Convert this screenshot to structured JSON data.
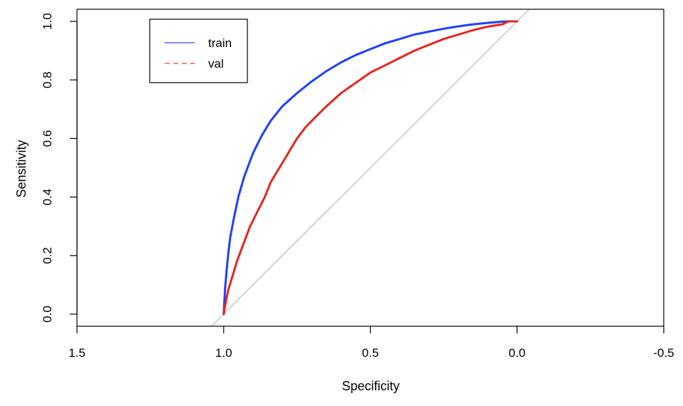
{
  "chart_data": {
    "type": "line",
    "title": "",
    "xlabel": "Specificity",
    "ylabel": "Sensitivity",
    "x_reversed": true,
    "xlim": [
      1.5,
      -0.5
    ],
    "ylim": [
      0.0,
      1.0
    ],
    "x_ticks": [
      1.5,
      1.0,
      0.5,
      0.0,
      -0.5
    ],
    "x_tick_labels": [
      "1.5",
      "1.0",
      "0.5",
      "0.0",
      "-0.5"
    ],
    "y_ticks": [
      0.0,
      0.2,
      0.4,
      0.6,
      0.8,
      1.0
    ],
    "y_tick_labels": [
      "0.0",
      "0.2",
      "0.4",
      "0.6",
      "0.8",
      "1.0"
    ],
    "grid": false,
    "legend_position": "top-left",
    "reference_line": {
      "from": [
        1.04,
        -0.04
      ],
      "to": [
        -0.04,
        1.04
      ],
      "color": "#bebebe"
    },
    "series": [
      {
        "name": "train",
        "color": "#1f3fff",
        "legend_color": "#6b7bff",
        "legend_style": "solid",
        "x": [
          1.0,
          0.998,
          0.995,
          0.99,
          0.985,
          0.978,
          0.965,
          0.95,
          0.93,
          0.9,
          0.87,
          0.84,
          0.8,
          0.75,
          0.7,
          0.65,
          0.6,
          0.55,
          0.5,
          0.45,
          0.4,
          0.35,
          0.3,
          0.25,
          0.2,
          0.15,
          0.1,
          0.05,
          0.03,
          0.0
        ],
        "y": [
          0.0,
          0.04,
          0.09,
          0.15,
          0.2,
          0.26,
          0.33,
          0.4,
          0.47,
          0.55,
          0.61,
          0.66,
          0.71,
          0.755,
          0.795,
          0.83,
          0.86,
          0.885,
          0.905,
          0.925,
          0.94,
          0.955,
          0.965,
          0.975,
          0.983,
          0.99,
          0.995,
          0.999,
          1.0,
          1.0
        ]
      },
      {
        "name": "val",
        "color": "#e8251e",
        "legend_color": "#ff7070",
        "legend_style": "dashed",
        "x": [
          1.0,
          0.995,
          0.985,
          0.97,
          0.955,
          0.94,
          0.925,
          0.91,
          0.9,
          0.88,
          0.86,
          0.84,
          0.81,
          0.78,
          0.75,
          0.72,
          0.69,
          0.65,
          0.6,
          0.55,
          0.5,
          0.45,
          0.4,
          0.35,
          0.3,
          0.25,
          0.2,
          0.15,
          0.1,
          0.05,
          0.04,
          0.03,
          0.0
        ],
        "y": [
          0.0,
          0.03,
          0.08,
          0.13,
          0.18,
          0.22,
          0.26,
          0.3,
          0.32,
          0.36,
          0.4,
          0.45,
          0.5,
          0.55,
          0.6,
          0.64,
          0.67,
          0.71,
          0.755,
          0.79,
          0.825,
          0.85,
          0.875,
          0.9,
          0.92,
          0.94,
          0.955,
          0.97,
          0.982,
          0.99,
          0.995,
          1.0,
          1.0
        ]
      }
    ]
  }
}
